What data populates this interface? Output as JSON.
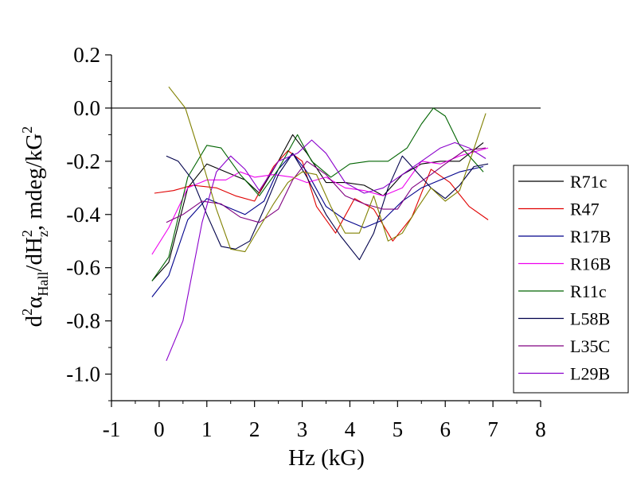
{
  "chart_data": {
    "type": "line",
    "xlabel": "Hz (kG)",
    "ylabel": {
      "d1": "d",
      "sup1": "2",
      "alpha": "α",
      "sub_hall": "Hall",
      "d2": "/dH",
      "sup2": "2",
      "sub_z": "z",
      "unit": ", mdeg/kG",
      "sup3": "2"
    },
    "xlim": [
      -1,
      8
    ],
    "ylim": [
      -1.1,
      0.2
    ],
    "x_ticks": [
      "-1",
      "0",
      "1",
      "2",
      "3",
      "4",
      "5",
      "6",
      "7",
      "8"
    ],
    "x_tick_values": [
      -1,
      0,
      1,
      2,
      3,
      4,
      5,
      6,
      7,
      8
    ],
    "y_ticks": [
      "0.2",
      "0.0",
      "-0.2",
      "-0.4",
      "-0.6",
      "-0.8",
      "-1.0"
    ],
    "y_tick_values": [
      0.2,
      0.0,
      -0.2,
      -0.4,
      -0.6,
      -0.8,
      -1.0
    ],
    "reference_line_y": 0.0,
    "legend_position": "right",
    "series": [
      {
        "name": "R71c",
        "color": "#000000",
        "x": [
          -0.15,
          0.2,
          0.6,
          1.0,
          1.4,
          1.8,
          2.1,
          2.5,
          2.8,
          3.1,
          3.5,
          3.9,
          4.3,
          4.7,
          5.1,
          5.5,
          5.9,
          6.3,
          6.8
        ],
        "y": [
          -0.65,
          -0.58,
          -0.3,
          -0.21,
          -0.24,
          -0.27,
          -0.32,
          -0.2,
          -0.1,
          -0.17,
          -0.28,
          -0.28,
          -0.29,
          -0.33,
          -0.25,
          -0.21,
          -0.2,
          -0.2,
          -0.13
        ]
      },
      {
        "name": "R47",
        "color": "#e00000",
        "x": [
          -0.1,
          0.3,
          0.7,
          1.2,
          1.6,
          2.0,
          2.4,
          2.7,
          3.0,
          3.3,
          3.7,
          4.1,
          4.5,
          4.9,
          5.3,
          5.7,
          6.1,
          6.5,
          6.9
        ],
        "y": [
          -0.32,
          -0.31,
          -0.29,
          -0.3,
          -0.33,
          -0.35,
          -0.22,
          -0.16,
          -0.2,
          -0.37,
          -0.47,
          -0.34,
          -0.38,
          -0.5,
          -0.41,
          -0.23,
          -0.28,
          -0.37,
          -0.42
        ]
      },
      {
        "name": "R17B",
        "color": "#00008b",
        "x": [
          -0.15,
          0.2,
          0.6,
          1.0,
          1.4,
          1.8,
          2.2,
          2.5,
          2.8,
          3.1,
          3.5,
          3.9,
          4.3,
          4.7,
          5.1,
          5.5,
          5.9,
          6.3,
          6.8
        ],
        "y": [
          -0.71,
          -0.63,
          -0.42,
          -0.34,
          -0.37,
          -0.4,
          -0.35,
          -0.23,
          -0.17,
          -0.24,
          -0.37,
          -0.42,
          -0.45,
          -0.42,
          -0.35,
          -0.3,
          -0.27,
          -0.24,
          -0.22
        ]
      },
      {
        "name": "R16B",
        "color": "#ee00ee",
        "x": [
          -0.15,
          0.2,
          0.6,
          1.0,
          1.4,
          1.7,
          2.0,
          2.4,
          2.8,
          3.1,
          3.5,
          3.9,
          4.3,
          4.7,
          5.1,
          5.5,
          5.9,
          6.3,
          6.9
        ],
        "y": [
          -0.55,
          -0.45,
          -0.3,
          -0.27,
          -0.27,
          -0.24,
          -0.26,
          -0.25,
          -0.26,
          -0.28,
          -0.26,
          -0.3,
          -0.31,
          -0.33,
          -0.3,
          -0.2,
          -0.21,
          -0.18,
          -0.15
        ]
      },
      {
        "name": "R11c",
        "color": "#006400",
        "x": [
          -0.15,
          0.2,
          0.6,
          1.0,
          1.3,
          1.7,
          2.1,
          2.5,
          2.9,
          3.2,
          3.6,
          4.0,
          4.4,
          4.8,
          5.2,
          5.5,
          5.75,
          6.0,
          6.3,
          6.8
        ],
        "y": [
          -0.65,
          -0.56,
          -0.26,
          -0.14,
          -0.15,
          -0.25,
          -0.33,
          -0.23,
          -0.1,
          -0.2,
          -0.26,
          -0.21,
          -0.2,
          -0.2,
          -0.15,
          -0.06,
          0.0,
          -0.03,
          -0.14,
          -0.24
        ]
      },
      {
        "name": "L58B",
        "color": "#00004b",
        "x": [
          0.15,
          0.4,
          0.7,
          1.0,
          1.3,
          1.6,
          1.9,
          2.2,
          2.5,
          2.8,
          3.1,
          3.5,
          3.8,
          4.2,
          4.5,
          4.8,
          5.1,
          5.4,
          5.7,
          6.0,
          6.3,
          6.6,
          6.9
        ],
        "y": [
          -0.18,
          -0.2,
          -0.27,
          -0.4,
          -0.52,
          -0.53,
          -0.5,
          -0.38,
          -0.25,
          -0.17,
          -0.26,
          -0.4,
          -0.48,
          -0.57,
          -0.47,
          -0.3,
          -0.18,
          -0.24,
          -0.3,
          -0.34,
          -0.29,
          -0.22,
          -0.21
        ]
      },
      {
        "name": "L35C",
        "color": "#800080",
        "x": [
          0.15,
          0.5,
          0.9,
          1.3,
          1.7,
          2.1,
          2.5,
          2.8,
          3.1,
          3.5,
          3.9,
          4.3,
          4.7,
          5.0,
          5.3,
          5.7,
          6.0,
          6.4,
          6.85
        ],
        "y": [
          -0.43,
          -0.4,
          -0.35,
          -0.36,
          -0.41,
          -0.43,
          -0.38,
          -0.27,
          -0.2,
          -0.25,
          -0.33,
          -0.36,
          -0.38,
          -0.38,
          -0.3,
          -0.25,
          -0.21,
          -0.16,
          -0.15
        ]
      },
      {
        "name": "L29B",
        "color": "#8a00cc",
        "x": [
          0.15,
          0.5,
          0.9,
          1.2,
          1.5,
          1.8,
          2.1,
          2.5,
          2.9,
          3.2,
          3.5,
          3.9,
          4.3,
          4.7,
          5.1,
          5.5,
          5.9,
          6.2,
          6.5,
          6.85
        ],
        "y": [
          -0.95,
          -0.8,
          -0.43,
          -0.24,
          -0.18,
          -0.23,
          -0.31,
          -0.2,
          -0.17,
          -0.12,
          -0.17,
          -0.28,
          -0.32,
          -0.3,
          -0.25,
          -0.2,
          -0.15,
          -0.13,
          -0.15,
          -0.19
        ]
      },
      {
        "name": "",
        "color": "#808000",
        "x": [
          0.2,
          0.55,
          0.9,
          1.2,
          1.5,
          1.8,
          2.1,
          2.4,
          2.7,
          3.0,
          3.3,
          3.6,
          3.9,
          4.2,
          4.5,
          4.8,
          5.1,
          5.4,
          5.7,
          6.0,
          6.3,
          6.55,
          6.85
        ],
        "y": [
          0.08,
          0.0,
          -0.2,
          -0.38,
          -0.53,
          -0.54,
          -0.45,
          -0.36,
          -0.28,
          -0.24,
          -0.25,
          -0.37,
          -0.47,
          -0.47,
          -0.33,
          -0.5,
          -0.47,
          -0.38,
          -0.3,
          -0.35,
          -0.31,
          -0.18,
          -0.02
        ]
      }
    ]
  }
}
